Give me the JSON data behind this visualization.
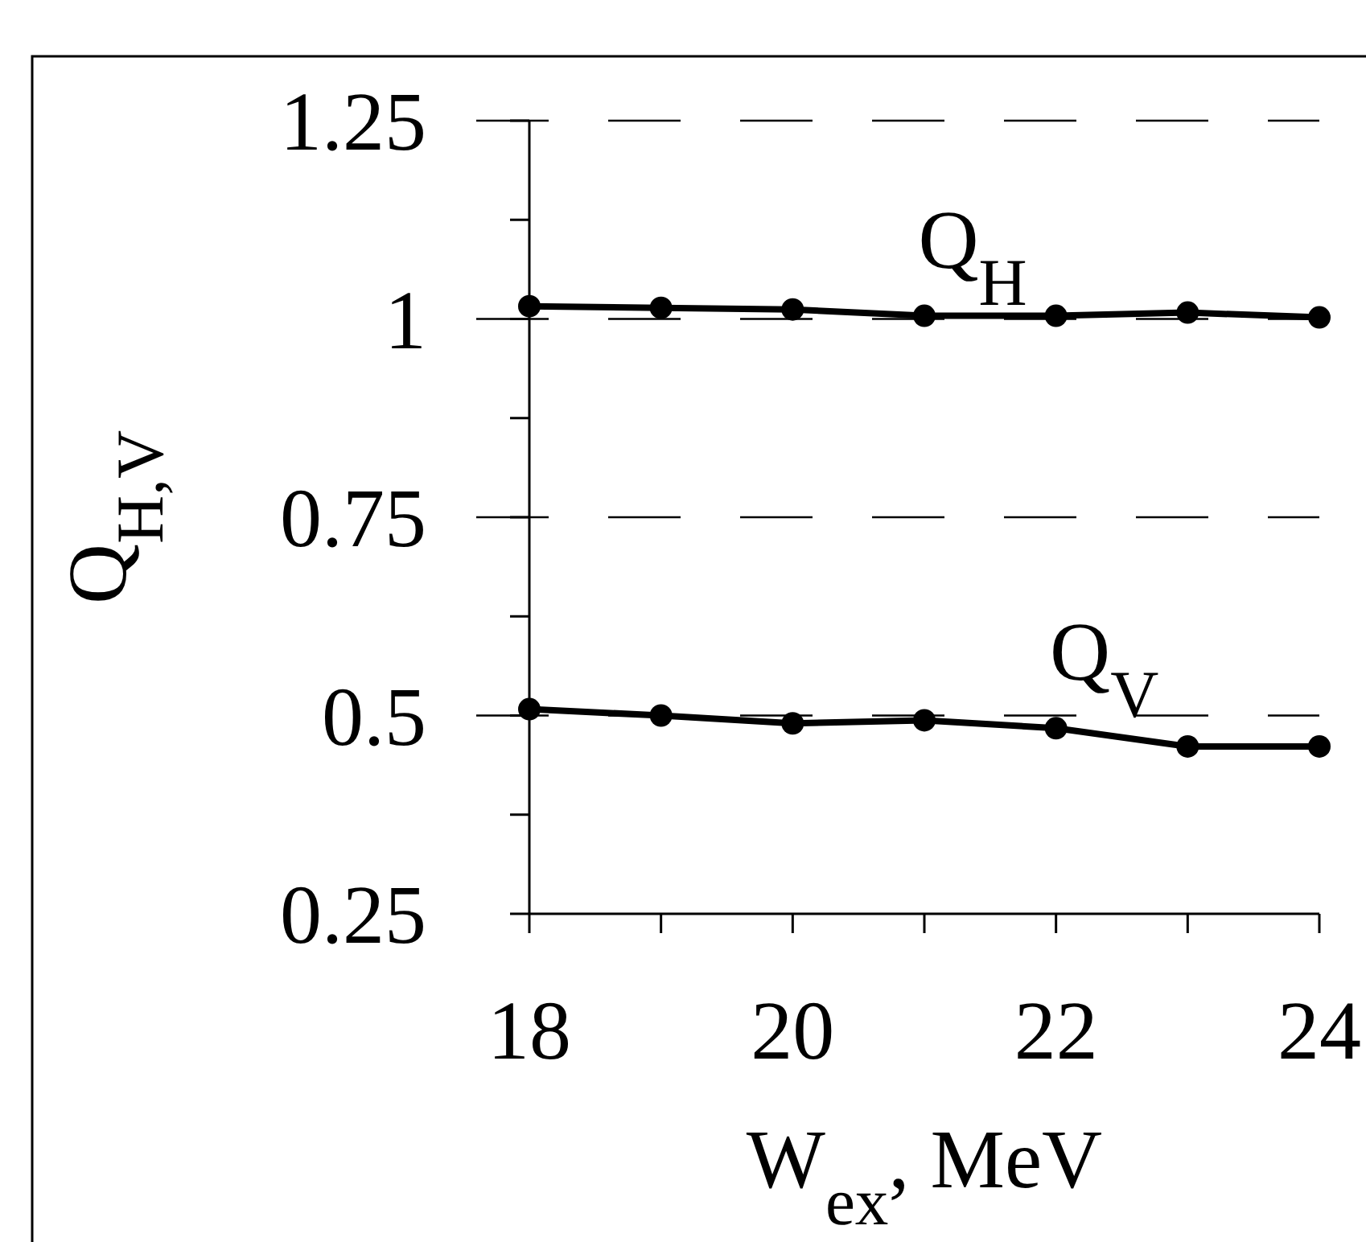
{
  "chart_data": {
    "type": "line",
    "xlabel": "W$_{ex}$, MeV",
    "ylabel": "Q$_{H,V}$",
    "x": [
      18,
      19,
      20,
      21,
      22,
      23,
      24
    ],
    "series": [
      {
        "name": "Q$_{H}$",
        "color": "#000000",
        "values": [
          1.016,
          1.014,
          1.012,
          1.004,
          1.004,
          1.008,
          1.002
        ]
      },
      {
        "name": "Q$_{V}$",
        "color": "#000000",
        "values": [
          0.508,
          0.5,
          0.49,
          0.494,
          0.484,
          0.461,
          0.461
        ]
      }
    ],
    "xlim": [
      18,
      24
    ],
    "ylim": [
      0.25,
      1.25
    ],
    "xticks": [
      18,
      {
        "value": 19,
        "label": null
      },
      20,
      {
        "value": 21,
        "label": null
      },
      22,
      {
        "value": 23,
        "label": null
      },
      24
    ],
    "yticks": [
      0.25,
      {
        "value": 0.375,
        "label": null
      },
      0.5,
      {
        "value": 0.625,
        "label": null
      },
      0.75,
      {
        "value": 0.875,
        "label": null
      },
      1,
      {
        "value": 1.125,
        "label": null
      },
      1.25
    ],
    "grid": "y",
    "marker": "circle",
    "line_style": "solid"
  }
}
